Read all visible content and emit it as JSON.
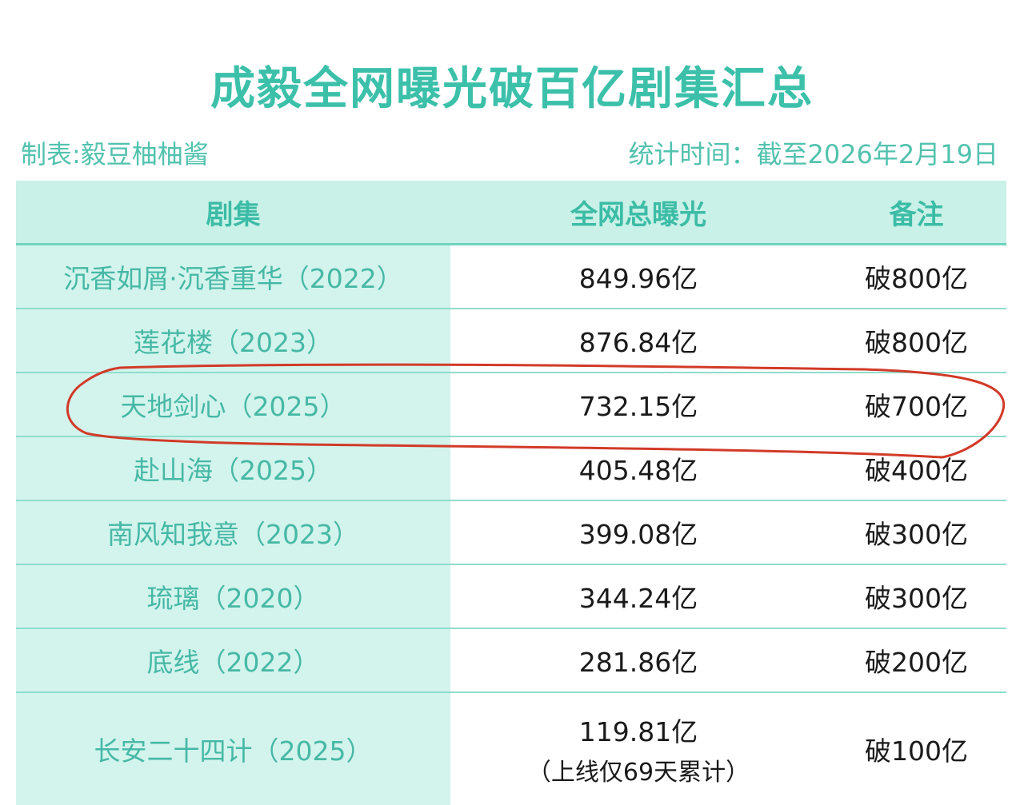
{
  "title": "成毅全网曝光破百亿剧集汇总",
  "maker": "制表:毅豆柚柚酱",
  "stat_time": "统计时间：截至2026年2月19日",
  "colors": {
    "accent": "#3cc0aa",
    "header_bg": "#c9f1e7",
    "name_cell_bg": "#d2f4ec",
    "highlight_circle": "#d23a28"
  },
  "table": {
    "headers": [
      "剧集",
      "全网总曝光",
      "备注"
    ],
    "rows": [
      {
        "name": "沉香如屑·沉香重华（2022）",
        "exposure": "849.96亿",
        "exposure_note": "",
        "remark": "破800亿"
      },
      {
        "name": "莲花楼（2023）",
        "exposure": "876.84亿",
        "exposure_note": "",
        "remark": "破800亿"
      },
      {
        "name": "天地剑心（2025）",
        "exposure": "732.15亿",
        "exposure_note": "",
        "remark": "破700亿"
      },
      {
        "name": "赴山海（2025）",
        "exposure": "405.48亿",
        "exposure_note": "",
        "remark": "破400亿"
      },
      {
        "name": "南风知我意（2023）",
        "exposure": "399.08亿",
        "exposure_note": "",
        "remark": "破300亿"
      },
      {
        "name": "琉璃（2020）",
        "exposure": "344.24亿",
        "exposure_note": "",
        "remark": "破300亿"
      },
      {
        "name": "底线（2022）",
        "exposure": "281.86亿",
        "exposure_note": "",
        "remark": "破200亿"
      },
      {
        "name": "长安二十四计（2025）",
        "exposure": "119.81亿",
        "exposure_note": "（上线仅69天累计）",
        "remark": "破100亿"
      }
    ]
  }
}
